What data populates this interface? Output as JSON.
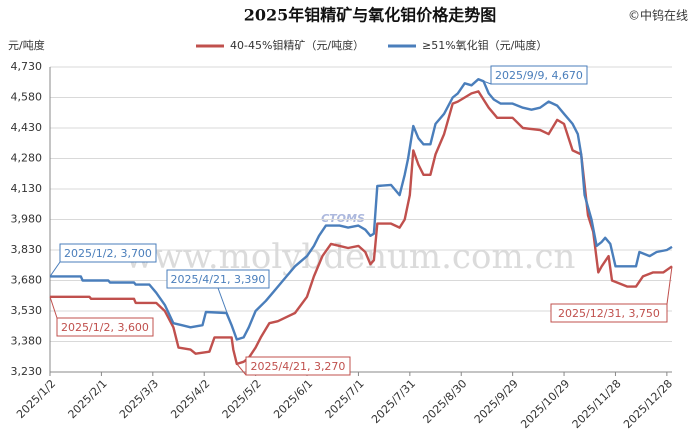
{
  "chart_data": {
    "type": "line",
    "title": "2025年钼精矿与氧化钼价格走势图",
    "source": "©中钨在线",
    "y_label": "元/吨度",
    "watermark": "www.molybdenum.com.cn",
    "logo": "CTOMS",
    "ylim": [
      3230,
      4730
    ],
    "yticks": [
      {
        "value": 3230,
        "label": "3,230"
      },
      {
        "value": 3380,
        "label": "3,380"
      },
      {
        "value": 3530,
        "label": "3,530"
      },
      {
        "value": 3680,
        "label": "3,680"
      },
      {
        "value": 3830,
        "label": "3,830"
      },
      {
        "value": 3980,
        "label": "3,980"
      },
      {
        "value": 4130,
        "label": "4,130"
      },
      {
        "value": 4280,
        "label": "4,280"
      },
      {
        "value": 4430,
        "label": "4,430"
      },
      {
        "value": 4580,
        "label": "4,580"
      },
      {
        "value": 4730,
        "label": "4,730"
      }
    ],
    "xlim": [
      "2025/1/2",
      "2025/12/31"
    ],
    "xticks": [
      "2025/1/2",
      "2025/2/1",
      "2025/3/3",
      "2025/4/2",
      "2025/5/2",
      "2025/6/1",
      "2025/7/1",
      "2025/7/31",
      "2025/8/30",
      "2025/9/29",
      "2025/10/29",
      "2025/11/28",
      "2025/12/28"
    ],
    "grid": true,
    "series": [
      {
        "name": "40-45%钼精矿（元/吨度）",
        "color": "#c0504d",
        "x": [
          "2025/1/2",
          "2025/1/25",
          "2025/1/26",
          "2025/2/20",
          "2025/2/21",
          "2025/3/5",
          "2025/3/10",
          "2025/3/15",
          "2025/3/18",
          "2025/3/25",
          "2025/3/28",
          "2025/4/5",
          "2025/4/8",
          "2025/4/18",
          "2025/4/19",
          "2025/4/21",
          "2025/4/25",
          "2025/4/28",
          "2025/5/2",
          "2025/5/5",
          "2025/5/10",
          "2025/5/15",
          "2025/5/20",
          "2025/5/25",
          "2025/6/1",
          "2025/6/5",
          "2025/6/10",
          "2025/6/15",
          "2025/6/20",
          "2025/6/25",
          "2025/7/1",
          "2025/7/5",
          "2025/7/8",
          "2025/7/10",
          "2025/7/12",
          "2025/7/20",
          "2025/7/25",
          "2025/7/28",
          "2025/7/31",
          "2025/8/2",
          "2025/8/5",
          "2025/8/8",
          "2025/8/12",
          "2025/8/15",
          "2025/8/20",
          "2025/8/25",
          "2025/8/28",
          "2025/9/1",
          "2025/9/5",
          "2025/9/9",
          "2025/9/12",
          "2025/9/15",
          "2025/9/20",
          "2025/9/29",
          "2025/10/5",
          "2025/10/15",
          "2025/10/20",
          "2025/10/25",
          "2025/10/29",
          "2025/11/3",
          "2025/11/8",
          "2025/11/10",
          "2025/11/12",
          "2025/11/15",
          "2025/11/18",
          "2025/11/20",
          "2025/11/24",
          "2025/11/26",
          "2025/12/5",
          "2025/12/10",
          "2025/12/14",
          "2025/12/20",
          "2025/12/26",
          "2025/12/31"
        ],
        "values": [
          3600,
          3600,
          3590,
          3590,
          3570,
          3570,
          3530,
          3450,
          3350,
          3340,
          3320,
          3330,
          3400,
          3400,
          3340,
          3270,
          3280,
          3300,
          3350,
          3400,
          3470,
          3480,
          3500,
          3520,
          3600,
          3700,
          3800,
          3860,
          3850,
          3840,
          3850,
          3820,
          3760,
          3780,
          3960,
          3960,
          3940,
          3980,
          4100,
          4320,
          4250,
          4200,
          4200,
          4300,
          4400,
          4550,
          4560,
          4580,
          4600,
          4610,
          4570,
          4530,
          4480,
          4480,
          4430,
          4420,
          4400,
          4470,
          4450,
          4320,
          4300,
          4150,
          4000,
          3920,
          3720,
          3750,
          3800,
          3680,
          3650,
          3650,
          3700,
          3720,
          3720,
          3750
        ]
      },
      {
        "name": "≥51%氧化钼（元/吨度）",
        "color": "#4a7ebb",
        "x": [
          "2025/1/2",
          "2025/1/20",
          "2025/1/21",
          "2025/2/5",
          "2025/2/6",
          "2025/2/20",
          "2025/2/21",
          "2025/3/1",
          "2025/3/5",
          "2025/3/10",
          "2025/3/15",
          "2025/3/20",
          "2025/3/25",
          "2025/4/1",
          "2025/4/3",
          "2025/4/15",
          "2025/4/18",
          "2025/4/21",
          "2025/4/25",
          "2025/4/28",
          "2025/5/2",
          "2025/5/8",
          "2025/5/12",
          "2025/5/15",
          "2025/5/20",
          "2025/5/25",
          "2025/6/1",
          "2025/6/5",
          "2025/6/8",
          "2025/6/12",
          "2025/6/20",
          "2025/6/25",
          "2025/7/1",
          "2025/7/5",
          "2025/7/8",
          "2025/7/10",
          "2025/7/12",
          "2025/7/20",
          "2025/7/25",
          "2025/7/28",
          "2025/7/30",
          "2025/8/2",
          "2025/8/5",
          "2025/8/8",
          "2025/8/12",
          "2025/8/15",
          "2025/8/20",
          "2025/8/25",
          "2025/8/28",
          "2025/9/1",
          "2025/9/5",
          "2025/9/9",
          "2025/9/12",
          "2025/9/15",
          "2025/9/18",
          "2025/9/22",
          "2025/9/29",
          "2025/10/5",
          "2025/10/10",
          "2025/10/15",
          "2025/10/20",
          "2025/10/25",
          "2025/10/29",
          "2025/11/3",
          "2025/11/6",
          "2025/11/8",
          "2025/11/10",
          "2025/11/14",
          "2025/11/17",
          "2025/11/20",
          "2025/11/22",
          "2025/11/25",
          "2025/11/28",
          "2025/12/5",
          "2025/12/10",
          "2025/12/12",
          "2025/12/18",
          "2025/12/22",
          "2025/12/28",
          "2025/12/31"
        ],
        "values": [
          3700,
          3700,
          3680,
          3680,
          3670,
          3670,
          3660,
          3660,
          3620,
          3560,
          3470,
          3460,
          3450,
          3460,
          3525,
          3520,
          3460,
          3390,
          3400,
          3450,
          3530,
          3580,
          3620,
          3650,
          3700,
          3750,
          3800,
          3850,
          3900,
          3950,
          3950,
          3940,
          3950,
          3930,
          3900,
          3910,
          4145,
          4150,
          4100,
          4200,
          4280,
          4440,
          4380,
          4350,
          4350,
          4450,
          4500,
          4580,
          4600,
          4650,
          4640,
          4670,
          4660,
          4600,
          4570,
          4550,
          4550,
          4530,
          4520,
          4530,
          4560,
          4540,
          4500,
          4450,
          4400,
          4300,
          4100,
          3980,
          3850,
          3870,
          3890,
          3860,
          3750,
          3750,
          3750,
          3820,
          3800,
          3820,
          3830,
          3845
        ]
      }
    ],
    "annotations": [
      {
        "text": "2025/1/2, 3,700",
        "series": 1
      },
      {
        "text": "2025/4/21, 3,390",
        "series": 1
      },
      {
        "text": "2025/9/9, 4,670",
        "series": 1
      },
      {
        "text": "2025/1/2, 3,600",
        "series": 0
      },
      {
        "text": "2025/4/21, 3,270",
        "series": 0
      },
      {
        "text": "2025/12/31, 3,750",
        "series": 0
      }
    ]
  }
}
